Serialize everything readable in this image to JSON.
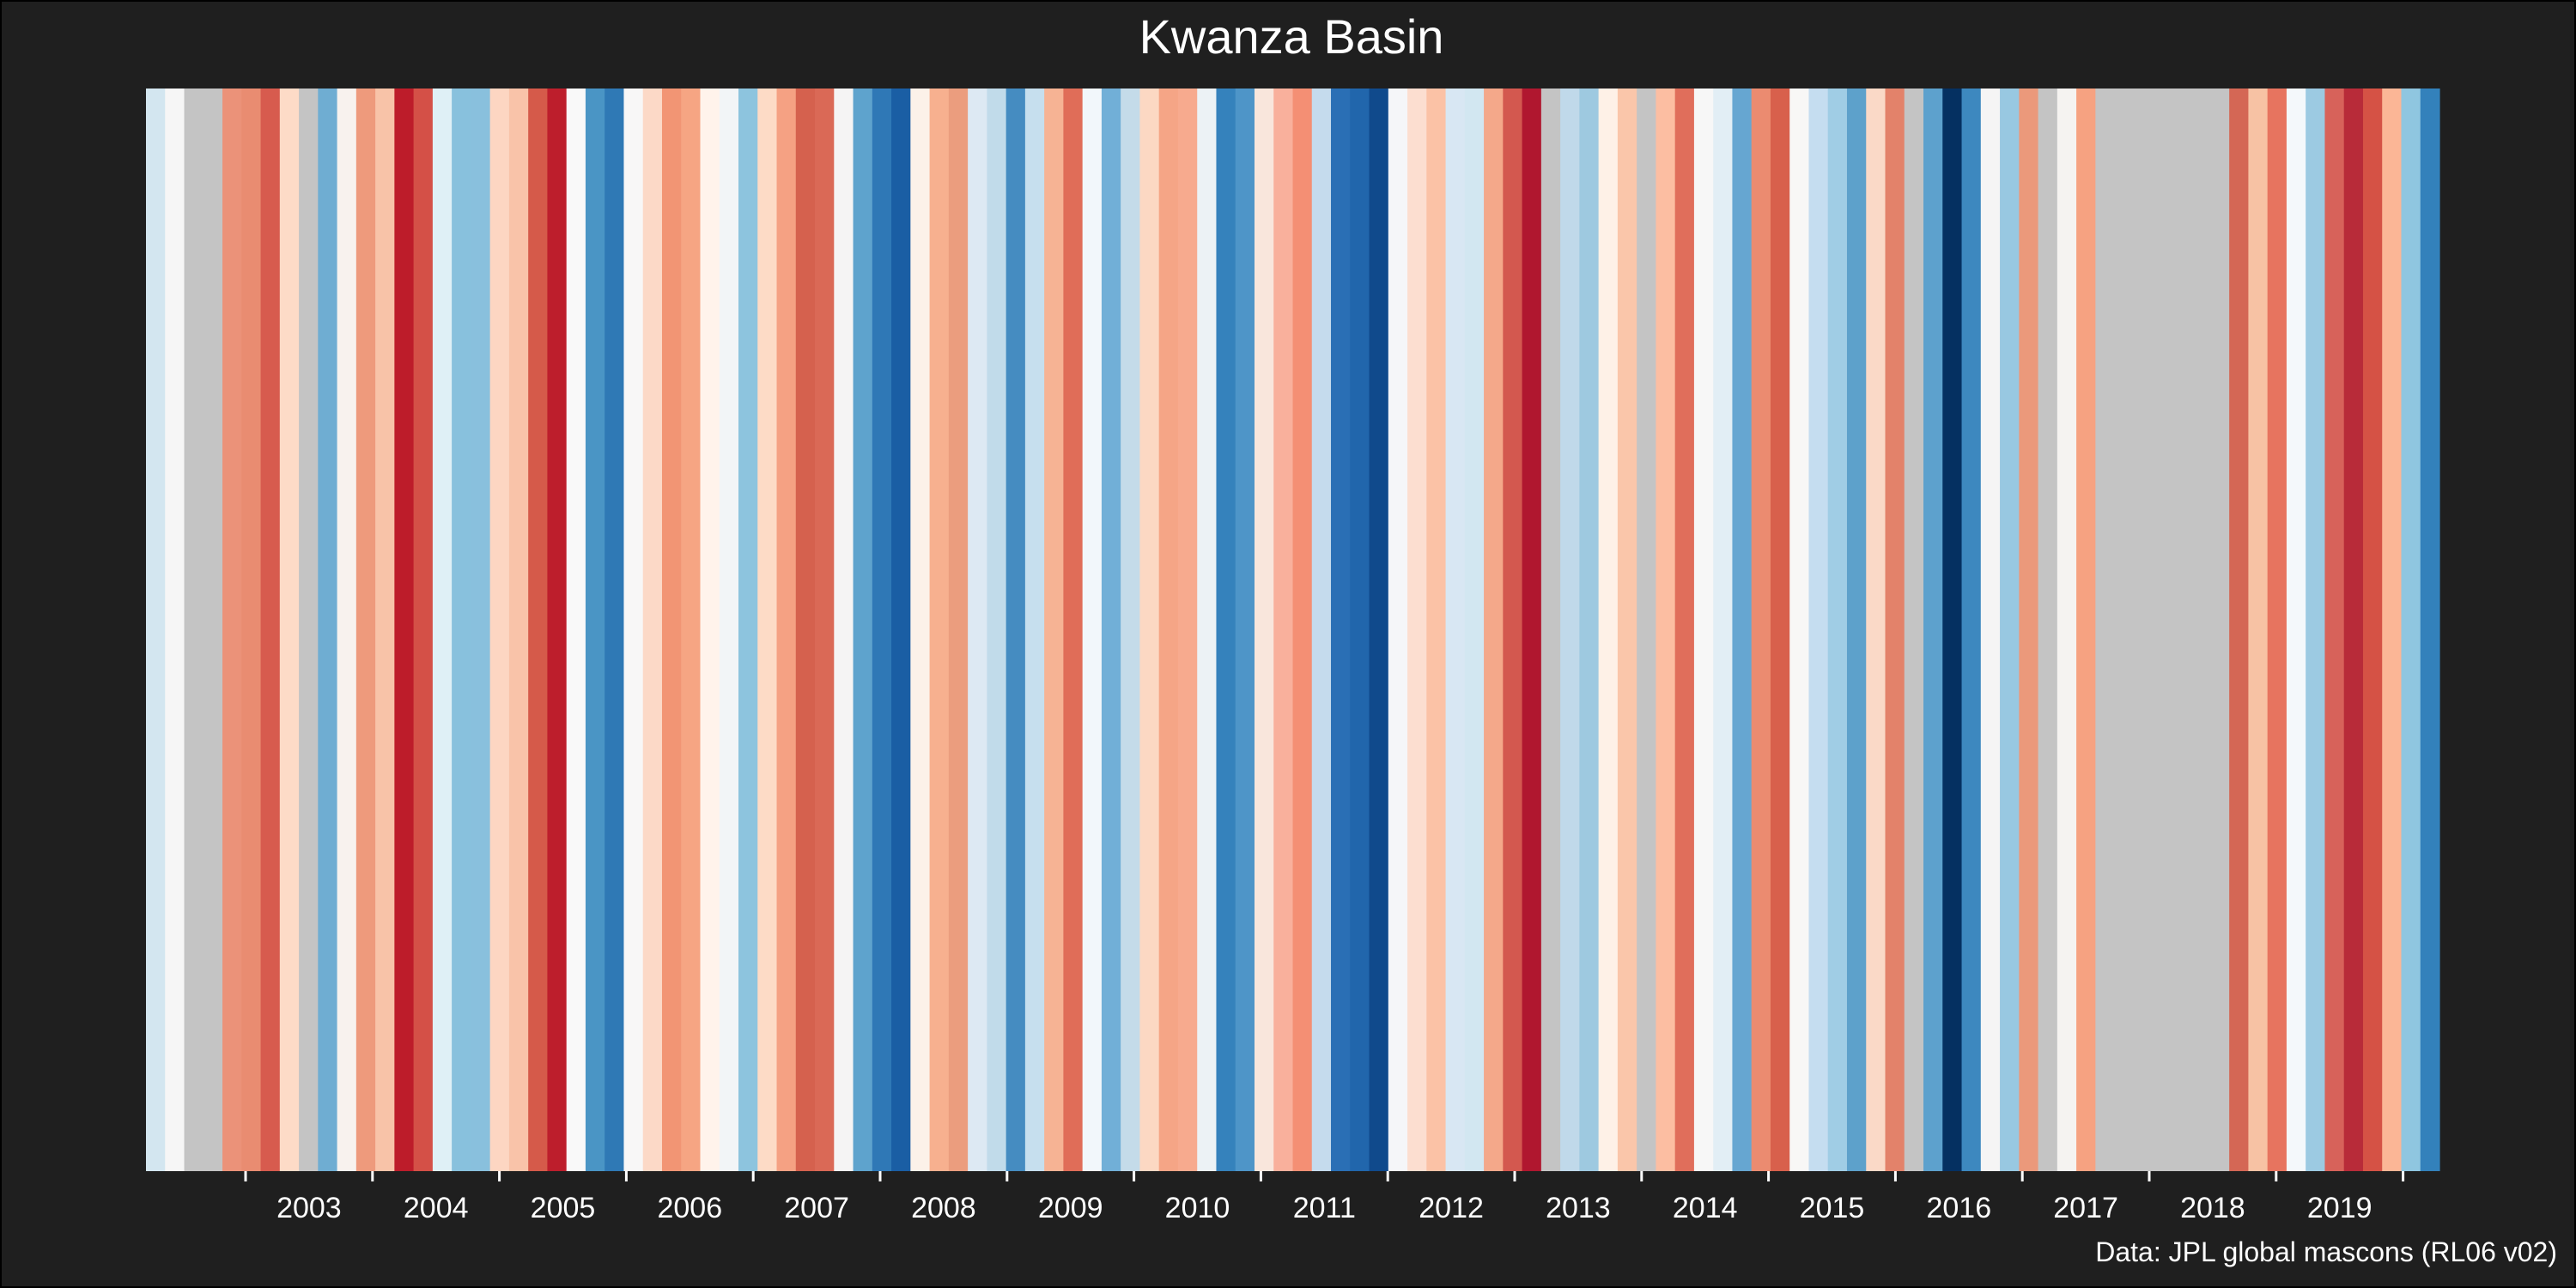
{
  "chart_data": {
    "type": "heatmap",
    "title": "Kwanza Basin",
    "caption": "Data: JPL global mascons (RL06 v02)",
    "x_ticks": [
      "2003",
      "2004",
      "2005",
      "2006",
      "2007",
      "2008",
      "2009",
      "2010",
      "2011",
      "2012",
      "2013",
      "2014",
      "2015",
      "2016",
      "2017",
      "2018",
      "2019"
    ],
    "x_range": [
      "2002-04",
      "2020-06"
    ],
    "missing_color": "#c4c4c4",
    "colors": [
      "#d3e6f0",
      "#f6f6f6",
      "#c4c4c4",
      "#c4c4c4",
      "#eb9279",
      "#e98c71",
      "#d75b4e",
      "#fddbc7",
      "#c4c4c4",
      "#6fadd2",
      "#f8f2ee",
      "#ee9a7c",
      "#f8c3a8",
      "#bd1c2a",
      "#d45047",
      "#dff0f6",
      "#88c1dd",
      "#89c0dd",
      "#fdd6c2",
      "#f9c3a9",
      "#d55a4a",
      "#bd1e2c",
      "#f9f9f9",
      "#4a95c5",
      "#2f79b5",
      "#f8f7f7",
      "#fcd9c7",
      "#f29574",
      "#f6a583",
      "#fff3eb",
      "#f2f5f7",
      "#8dc4de",
      "#fddbc6",
      "#f5a183",
      "#d5614e",
      "#da6956",
      "#f5f4f4",
      "#5ea3cd",
      "#2f78b6",
      "#1a5ea4",
      "#fcf1e9",
      "#f7b08f",
      "#eb9d7e",
      "#dde9f3",
      "#c1dbea",
      "#458cc1",
      "#c6dfee",
      "#f6b394",
      "#e06d58",
      "#f2f7fb",
      "#71afd7",
      "#c4dbe9",
      "#fcd8c3",
      "#f5a586",
      "#f7aa8e",
      "#ecf2f5",
      "#3582bc",
      "#4e95c8",
      "#f9e6dc",
      "#f9b09c",
      "#f48f74",
      "#c5dbed",
      "#2a6fb5",
      "#2166ac",
      "#104a8c",
      "#f5f6f9",
      "#fcded0",
      "#fbc2a6",
      "#d8e7f3",
      "#d2e7f1",
      "#f4a88a",
      "#d3584f",
      "#b0172f",
      "#c4c4c4",
      "#c0d9ea",
      "#9ec9e0",
      "#fef1e7",
      "#fac6aa",
      "#c4c4c4",
      "#fcbea2",
      "#e06e5b",
      "#f7f7f7",
      "#e2eef5",
      "#66a6d1",
      "#eb8b70",
      "#d8604c",
      "#f8f7f6",
      "#c5ddf0",
      "#a0cde5",
      "#5da1cb",
      "#fad9c7",
      "#e3826a",
      "#c4c4c4",
      "#5da1cd",
      "#053061",
      "#3d88bf",
      "#f5f5f5",
      "#98c8e1",
      "#eb997b",
      "#c4c4c4",
      "#f5f3f1",
      "#f6a281",
      "#c4c4c4",
      "#c4c4c4",
      "#c4c4c4",
      "#c4c4c4",
      "#c4c4c4",
      "#c4c4c4",
      "#c4c4c4",
      "#d46755",
      "#f7c2a4",
      "#e7745f",
      "#f4f8fb",
      "#9ccae2",
      "#d7625a",
      "#b82b39",
      "#d55245",
      "#fbb696",
      "#8fc6e0",
      "#3381bb"
    ]
  }
}
